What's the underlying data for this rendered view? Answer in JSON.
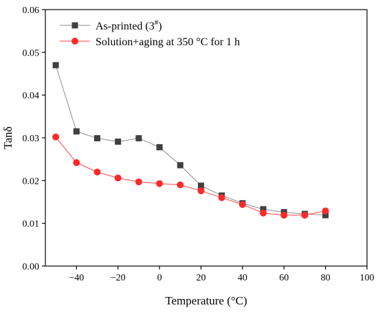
{
  "chart_data": {
    "type": "line",
    "xlabel": "Temperature (°C)",
    "ylabel": "Tanδ",
    "xlim": [
      -55,
      100
    ],
    "ylim": [
      0,
      0.06
    ],
    "xticks": [
      -40,
      -20,
      0,
      20,
      40,
      60,
      80,
      100
    ],
    "xtick_labels": [
      "−40",
      "−20",
      "0",
      "20",
      "40",
      "60",
      "80",
      "100"
    ],
    "yticks": [
      0,
      0.01,
      0.02,
      0.03,
      0.04,
      0.05,
      0.06
    ],
    "ytick_labels": [
      "0.00",
      "0.01",
      "0.02",
      "0.03",
      "0.04",
      "0.05",
      "0.06"
    ],
    "grid": false,
    "legend_position": "top-left",
    "series": [
      {
        "name": "As-printed (3",
        "name_superscript": "#",
        "name_suffix": ")",
        "marker": "square",
        "color": "#404040",
        "line_color": "#8c8c8c",
        "x": [
          -50,
          -40,
          -30,
          -20,
          -10,
          0,
          10,
          20,
          30,
          40,
          50,
          60,
          70,
          80
        ],
        "y": [
          0.047,
          0.0315,
          0.0299,
          0.0291,
          0.0299,
          0.0278,
          0.0236,
          0.0188,
          0.0165,
          0.0147,
          0.0133,
          0.0126,
          0.0122,
          0.0119
        ]
      },
      {
        "name": "Solution+aging at 350 °C for 1 h",
        "marker": "circle",
        "color": "#ff2a2a",
        "line_color": "#ff4040",
        "x": [
          -50,
          -40,
          -30,
          -20,
          -10,
          0,
          10,
          20,
          30,
          40,
          50,
          60,
          70,
          80
        ],
        "y": [
          0.0302,
          0.0242,
          0.022,
          0.0206,
          0.0197,
          0.0193,
          0.019,
          0.0176,
          0.016,
          0.0144,
          0.0124,
          0.0119,
          0.0119,
          0.0129
        ]
      }
    ]
  }
}
